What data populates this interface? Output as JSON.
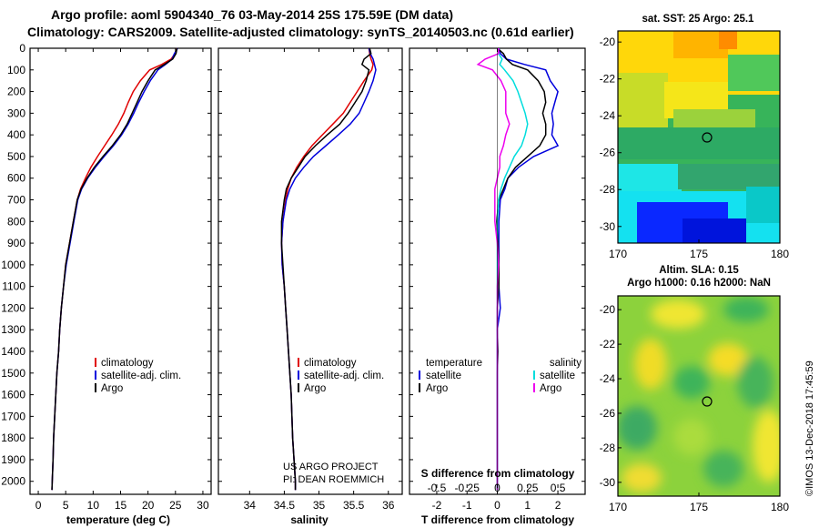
{
  "chart_data": {
    "type": "line",
    "title_lines": [
      "Argo profile: aoml 5904340_76 03-May-2014 25S 175.59E (DM data)",
      "Climatology: CARS2009. Satellite-adjusted climatology: synTS_20140503.nc (0.61d earlier)"
    ],
    "y_axis": {
      "label": "",
      "lim": [
        0,
        2060
      ],
      "reversed": true,
      "ticks": [
        0,
        100,
        200,
        300,
        400,
        500,
        600,
        700,
        800,
        900,
        1000,
        1100,
        1200,
        1300,
        1400,
        1500,
        1600,
        1700,
        1800,
        1900,
        2000
      ]
    },
    "depth": [
      0,
      25,
      50,
      75,
      100,
      150,
      200,
      250,
      300,
      350,
      400,
      450,
      500,
      550,
      600,
      650,
      700,
      800,
      900,
      1000,
      1100,
      1200,
      1300,
      1400,
      1500,
      1600,
      1700,
      1800,
      1900,
      2000,
      2040
    ],
    "panels": [
      {
        "id": "temperature",
        "xlabel": "temperature (deg C)",
        "xlim": [
          -1.5,
          31.5
        ],
        "xticks": [
          0,
          5,
          10,
          15,
          20,
          25,
          30
        ],
        "series": [
          {
            "name": "climatology",
            "color": "#e00000",
            "values": [
              25.3,
              24.9,
              24.2,
              22.5,
              20.3,
              18.6,
              17.3,
              16.4,
              15.6,
              14.6,
              13.4,
              12.1,
              10.8,
              9.6,
              8.6,
              7.7,
              7.1,
              6.4,
              5.7,
              5.0,
              4.6,
              4.2,
              3.9,
              3.7,
              3.4,
              3.2,
              3.0,
              2.8,
              2.7,
              2.55,
              2.5
            ]
          },
          {
            "name": "satellite-adj. clim.",
            "color": "#0000dd",
            "values": [
              25.4,
              24.8,
              24.4,
              23.2,
              21.8,
              20.4,
              19.3,
              18.3,
              17.4,
              16.4,
              15.2,
              13.7,
              12.0,
              10.4,
              9.0,
              7.9,
              7.2,
              6.5,
              5.8,
              5.1,
              4.6,
              4.2,
              3.9,
              3.7,
              3.4,
              3.2,
              3.0,
              2.8,
              2.7,
              2.55,
              2.5
            ]
          },
          {
            "name": "Argo",
            "color": "#000000",
            "values": [
              25.3,
              25.1,
              24.5,
              23.0,
              21.3,
              20.0,
              18.9,
              18.0,
              17.1,
              16.2,
              15.0,
              13.5,
              11.8,
              10.2,
              8.9,
              7.8,
              7.1,
              6.4,
              5.7,
              5.0,
              4.6,
              4.2,
              3.9,
              3.7,
              3.4,
              3.2,
              3.0,
              2.8,
              2.7,
              2.55,
              2.5
            ]
          }
        ],
        "legend": [
          "climatology",
          "satellite-adj. clim.",
          "Argo"
        ]
      },
      {
        "id": "salinity",
        "xlabel": "salinity",
        "xlim": [
          33.55,
          36.2
        ],
        "xticks": [
          34,
          34.5,
          35,
          35.5,
          36
        ],
        "xticklabels": [
          "34",
          "34.5",
          "35",
          "35.5",
          "36"
        ],
        "series": [
          {
            "name": "climatology",
            "color": "#e00000",
            "values": [
              35.72,
              35.73,
              35.75,
              35.78,
              35.76,
              35.65,
              35.55,
              35.45,
              35.35,
              35.2,
              35.05,
              34.9,
              34.78,
              34.68,
              34.6,
              34.55,
              34.52,
              34.48,
              34.46,
              34.47,
              34.5,
              34.52,
              34.54,
              34.56,
              34.58,
              34.6,
              34.61,
              34.62,
              34.64,
              34.66,
              34.66
            ]
          },
          {
            "name": "satellite-adj. clim.",
            "color": "#0000dd",
            "values": [
              35.72,
              35.74,
              35.78,
              35.8,
              35.82,
              35.78,
              35.72,
              35.65,
              35.58,
              35.45,
              35.28,
              35.1,
              34.92,
              34.78,
              34.66,
              34.58,
              34.53,
              34.48,
              34.46,
              34.47,
              34.5,
              34.52,
              34.54,
              34.56,
              34.58,
              34.6,
              34.61,
              34.62,
              34.64,
              34.66,
              34.66
            ]
          },
          {
            "name": "Argo",
            "color": "#000000",
            "values": [
              35.73,
              35.75,
              35.65,
              35.62,
              35.72,
              35.68,
              35.62,
              35.52,
              35.42,
              35.3,
              35.12,
              34.95,
              34.8,
              34.7,
              34.6,
              34.53,
              34.5,
              34.46,
              34.46,
              34.48,
              34.5,
              34.52,
              34.54,
              34.56,
              34.58,
              34.6,
              34.61,
              34.62,
              34.64,
              34.66,
              34.66
            ]
          }
        ],
        "legend": [
          "climatology",
          "satellite-adj. clim.",
          "Argo"
        ],
        "annotation_lines": [
          "US ARGO PROJECT",
          "PI: DEAN ROEMMICH"
        ]
      },
      {
        "id": "difference",
        "xlabel": "T difference from climatology",
        "xlabel_top": "S difference from climatology",
        "xlim": [
          -2.9,
          2.9
        ],
        "xticks": [
          -2,
          -1,
          0,
          1,
          2
        ],
        "s_ticks": [
          -0.5,
          -0.25,
          0,
          0.25,
          0.5
        ],
        "s_ticklabels": [
          "-0.5",
          "-0.25",
          "0",
          "0.25",
          "0.5"
        ],
        "s_scale": 4,
        "series": [
          {
            "name": "temperature: satellite",
            "color": "#0000dd",
            "values": [
              0.05,
              0.1,
              0.3,
              0.9,
              1.6,
              1.75,
              2.0,
              1.9,
              1.8,
              1.85,
              1.8,
              2.0,
              1.2,
              0.7,
              0.35,
              0.25,
              0.1,
              0.05,
              0.05,
              0.05,
              0.05,
              0.1,
              0.0,
              0.0,
              0.0,
              0.0,
              0.0,
              0.0,
              0.0,
              0.0,
              0.0
            ]
          },
          {
            "name": "temperature: Argo",
            "color": "#000000",
            "values": [
              0.0,
              0.2,
              0.3,
              0.5,
              1.0,
              1.35,
              1.55,
              1.6,
              1.5,
              1.6,
              1.6,
              1.4,
              1.0,
              0.6,
              0.35,
              0.2,
              0.05,
              -0.02,
              0.02,
              0.05,
              0.05,
              0.0,
              0.0,
              0.02,
              0.0,
              0.0,
              0.0,
              0.0,
              0.0,
              0.0,
              0.0
            ]
          },
          {
            "name": "salinity: satellite",
            "color": "#00dddd",
            "values": [
              0.01,
              0.01,
              0.04,
              0.02,
              0.06,
              0.13,
              0.17,
              0.2,
              0.23,
              0.25,
              0.23,
              0.2,
              0.14,
              0.1,
              0.06,
              0.03,
              0.01,
              0.0,
              0.0,
              0.0,
              0.0,
              0.0,
              0.0,
              0.0,
              0.0,
              0.0,
              0.0,
              0.0,
              0.0,
              0.0,
              0.0
            ]
          },
          {
            "name": "salinity: Argo",
            "color": "#ee00ee",
            "values": [
              0.01,
              0.01,
              -0.1,
              -0.16,
              -0.04,
              0.03,
              0.07,
              0.07,
              0.07,
              0.1,
              0.07,
              0.05,
              0.02,
              0.02,
              0.0,
              -0.02,
              -0.02,
              -0.02,
              0.0,
              0.01,
              0.0,
              0.0,
              0.0,
              0.0,
              0.0,
              0.0,
              0.0,
              0.0,
              0.0,
              0.0,
              0.0
            ]
          }
        ],
        "legend_left_title": "temperature",
        "legend_left": [
          "satellite",
          "Argo"
        ],
        "legend_right_title": "salinity",
        "legend_right": [
          "satellite",
          "Argo"
        ]
      }
    ],
    "maps": [
      {
        "id": "sst-map",
        "title": "sat. SST: 25 Argo: 25.1",
        "xticks": [
          170,
          175,
          180
        ],
        "yticks": [
          -20,
          -22,
          -24,
          -26,
          -28,
          -30
        ],
        "marker": {
          "lon": 175.59,
          "lat": -25.0
        }
      },
      {
        "id": "sla-map",
        "title_lines": [
          "Altim. SLA: 0.15",
          "Argo h1000: 0.16 h2000: NaN"
        ],
        "xticks": [
          170,
          175,
          180
        ],
        "yticks": [
          -20,
          -22,
          -24,
          -26,
          -28,
          -30
        ],
        "marker": {
          "lon": 175.59,
          "lat": -25.0
        }
      }
    ],
    "credit": "©IMOS 13-Dec-2018 17:45:59"
  },
  "colors": {
    "climatology": "#e00000",
    "satellite": "#0000dd",
    "argo": "#000000",
    "salinity_satellite": "#00dddd",
    "salinity_argo": "#ee00ee"
  }
}
